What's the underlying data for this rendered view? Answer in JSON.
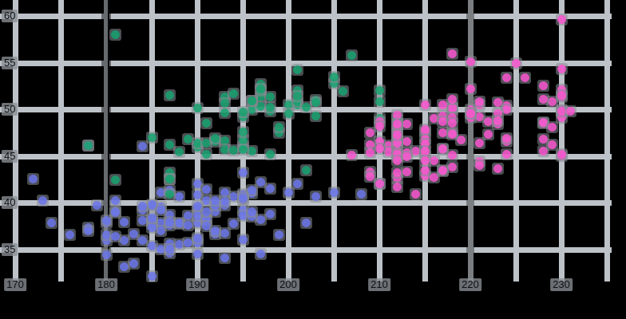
{
  "figure": {
    "background_color": "#000000",
    "grid_color": "#bcc2c7",
    "point_halo_color": "#878d93",
    "label_chip_color": "#8a9095",
    "label_text_color": "#0f1215"
  },
  "chart_data": {
    "type": "scatter",
    "title": "",
    "xlabel": "",
    "ylabel": "",
    "x_ticks": [
      170,
      180,
      190,
      200,
      210,
      220,
      230
    ],
    "y_ticks": [
      35,
      40,
      45,
      50,
      55,
      60
    ],
    "x_gridlines": [
      170,
      175,
      180,
      185,
      190,
      195,
      200,
      205,
      210,
      215,
      220,
      225,
      230,
      235
    ],
    "y_gridlines": [
      35,
      40,
      45,
      50,
      55,
      60
    ],
    "xlim": [
      168.3,
      237.1
    ],
    "ylim": [
      31.5,
      61.7
    ],
    "grid": "on, every 5 units both axes",
    "legend": "none",
    "reference_lines": [
      {
        "axis": "x",
        "value": 180,
        "style": "dark",
        "color": "#0e1116"
      },
      {
        "axis": "x",
        "value": 220,
        "style": "dimmed",
        "color": "#6b7176"
      }
    ],
    "series": [
      {
        "name": "blue",
        "color": "#6b76ea",
        "points": [
          [
            181,
            39.1
          ],
          [
            186,
            39.5
          ],
          [
            195,
            40.3
          ],
          [
            193,
            36.7
          ],
          [
            190,
            39.3
          ],
          [
            181,
            38.9
          ],
          [
            195,
            39.2
          ],
          [
            193,
            34.1
          ],
          [
            190,
            42.0
          ],
          [
            186,
            37.8
          ],
          [
            180,
            37.8
          ],
          [
            182,
            35.9
          ],
          [
            191,
            38.2
          ],
          [
            198,
            38.8
          ],
          [
            185,
            35.3
          ],
          [
            195,
            40.9
          ],
          [
            197,
            38.2
          ],
          [
            184,
            46.0
          ],
          [
            194,
            37.7
          ],
          [
            174,
            37.8
          ],
          [
            180,
            35.9
          ],
          [
            189,
            38.6
          ],
          [
            185,
            38.2
          ],
          [
            180,
            38.1
          ],
          [
            187,
            34.6
          ],
          [
            183,
            36.6
          ],
          [
            187,
            38.7
          ],
          [
            172,
            42.5
          ],
          [
            180,
            34.4
          ],
          [
            178,
            46.1
          ],
          [
            178,
            37.3
          ],
          [
            188,
            37.7
          ],
          [
            184,
            35.9
          ],
          [
            195,
            38.6
          ],
          [
            196,
            38.5
          ],
          [
            190,
            34.5
          ],
          [
            180,
            36.5
          ],
          [
            181,
            36.4
          ],
          [
            184,
            38.1
          ],
          [
            182,
            33.1
          ],
          [
            195,
            43.2
          ],
          [
            186,
            35.0
          ],
          [
            196,
            41.0
          ],
          [
            185,
            37.7
          ],
          [
            190,
            37.8
          ],
          [
            182,
            37.9
          ],
          [
            179,
            39.7
          ],
          [
            190,
            38.6
          ],
          [
            191,
            38.2
          ],
          [
            186,
            41.1
          ],
          [
            188,
            35.5
          ],
          [
            190,
            40.8
          ],
          [
            200,
            41.1
          ],
          [
            187,
            35.6
          ],
          [
            191,
            40.2
          ],
          [
            186,
            37.0
          ],
          [
            193,
            39.7
          ],
          [
            181,
            40.2
          ],
          [
            194,
            40.6
          ],
          [
            185,
            32.1
          ],
          [
            195,
            40.7
          ],
          [
            185,
            37.3
          ],
          [
            192,
            39.0
          ],
          [
            184,
            39.2
          ],
          [
            192,
            36.6
          ],
          [
            195,
            36.0
          ],
          [
            188,
            37.8
          ],
          [
            190,
            36.0
          ],
          [
            198,
            41.5
          ],
          [
            190,
            35.7
          ],
          [
            196,
            41.3
          ],
          [
            187,
            37.6
          ],
          [
            193,
            41.1
          ],
          [
            210,
            42.0
          ],
          [
            191,
            39.0
          ],
          [
            185,
            39.6
          ],
          [
            193,
            40.1
          ],
          [
            187,
            35.0
          ],
          [
            201,
            42.0
          ],
          [
            197,
            34.5
          ],
          [
            191,
            41.4
          ],
          [
            196,
            39.0
          ],
          [
            188,
            40.6
          ],
          [
            199,
            36.5
          ],
          [
            189,
            37.6
          ],
          [
            189,
            35.7
          ],
          [
            187,
            41.3
          ],
          [
            202,
            37.8
          ],
          [
            205,
            41.1
          ],
          [
            185,
            38.3
          ],
          [
            186,
            39.2
          ],
          [
            187,
            37.9
          ],
          [
            208,
            40.9
          ],
          [
            190,
            36.2
          ],
          [
            178,
            37.0
          ],
          [
            192,
            39.7
          ],
          [
            192,
            40.2
          ],
          [
            203,
            40.6
          ],
          [
            183,
            33.5
          ],
          [
            190,
            39.6
          ],
          [
            191,
            37.5
          ],
          [
            197,
            42.2
          ],
          [
            185,
            39.8
          ],
          [
            192,
            37.0
          ],
          [
            184,
            39.6
          ],
          [
            195,
            40.5
          ],
          [
            176,
            36.5
          ],
          [
            173,
            40.2
          ]
        ]
      },
      {
        "name": "green",
        "color": "#16a26f",
        "points": [
          [
            192,
            46.5
          ],
          [
            196,
            50.0
          ],
          [
            193,
            51.3
          ],
          [
            188,
            45.4
          ],
          [
            197,
            52.7
          ],
          [
            198,
            45.2
          ],
          [
            178,
            46.1
          ],
          [
            197,
            51.3
          ],
          [
            195,
            46.0
          ],
          [
            198,
            51.3
          ],
          [
            193,
            46.6
          ],
          [
            194,
            51.7
          ],
          [
            185,
            47.0
          ],
          [
            201,
            52.0
          ],
          [
            190,
            45.9
          ],
          [
            201,
            50.5
          ],
          [
            197,
            50.3
          ],
          [
            181,
            58.0
          ],
          [
            190,
            46.4
          ],
          [
            195,
            49.2
          ],
          [
            181,
            42.4
          ],
          [
            191,
            48.5
          ],
          [
            187,
            43.2
          ],
          [
            193,
            50.6
          ],
          [
            195,
            46.7
          ],
          [
            197,
            52.0
          ],
          [
            200,
            50.5
          ],
          [
            200,
            49.5
          ],
          [
            191,
            46.4
          ],
          [
            205,
            52.8
          ],
          [
            187,
            40.9
          ],
          [
            201,
            54.2
          ],
          [
            187,
            42.5
          ],
          [
            203,
            51.0
          ],
          [
            195,
            49.7
          ],
          [
            199,
            47.5
          ],
          [
            195,
            47.6
          ],
          [
            210,
            52.0
          ],
          [
            192,
            46.9
          ],
          [
            205,
            53.5
          ],
          [
            210,
            49.0
          ],
          [
            187,
            46.2
          ],
          [
            196,
            50.9
          ],
          [
            196,
            45.5
          ],
          [
            196,
            50.9
          ],
          [
            201,
            50.8
          ],
          [
            190,
            50.1
          ],
          [
            212,
            49.0
          ],
          [
            187,
            51.5
          ],
          [
            198,
            49.8
          ],
          [
            199,
            48.1
          ],
          [
            201,
            51.4
          ],
          [
            193,
            45.7
          ],
          [
            203,
            50.7
          ],
          [
            187,
            42.5
          ],
          [
            197,
            52.2
          ],
          [
            191,
            45.2
          ],
          [
            203,
            49.3
          ],
          [
            202,
            50.2
          ],
          [
            194,
            45.6
          ],
          [
            206,
            51.9
          ],
          [
            189,
            46.8
          ],
          [
            195,
            45.7
          ],
          [
            207,
            55.8
          ],
          [
            202,
            43.5
          ],
          [
            193,
            49.6
          ],
          [
            210,
            50.8
          ],
          [
            198,
            50.2
          ]
        ]
      },
      {
        "name": "pink",
        "color": "#f956cf",
        "points": [
          [
            211,
            46.1
          ],
          [
            230,
            50.0
          ],
          [
            210,
            48.7
          ],
          [
            218,
            50.0
          ],
          [
            215,
            47.6
          ],
          [
            210,
            46.5
          ],
          [
            211,
            45.4
          ],
          [
            219,
            46.7
          ],
          [
            209,
            43.3
          ],
          [
            215,
            46.8
          ],
          [
            214,
            40.9
          ],
          [
            216,
            49.0
          ],
          [
            214,
            45.5
          ],
          [
            213,
            48.4
          ],
          [
            210,
            45.8
          ],
          [
            217,
            49.3
          ],
          [
            210,
            42.0
          ],
          [
            221,
            49.2
          ],
          [
            209,
            46.2
          ],
          [
            222,
            48.7
          ],
          [
            218,
            50.2
          ],
          [
            215,
            45.1
          ],
          [
            213,
            46.5
          ],
          [
            215,
            46.3
          ],
          [
            215,
            42.9
          ],
          [
            216,
            44.5
          ],
          [
            215,
            47.8
          ],
          [
            210,
            48.2
          ],
          [
            220,
            50.0
          ],
          [
            222,
            47.3
          ],
          [
            209,
            42.8
          ],
          [
            207,
            45.1
          ],
          [
            230,
            59.6
          ],
          [
            220,
            49.1
          ],
          [
            223,
            48.4
          ],
          [
            212,
            42.6
          ],
          [
            221,
            44.4
          ],
          [
            221,
            44.0
          ],
          [
            217,
            48.7
          ],
          [
            216,
            42.7
          ],
          [
            230,
            49.6
          ],
          [
            209,
            45.3
          ],
          [
            220,
            49.6
          ],
          [
            215,
            50.5
          ],
          [
            223,
            43.6
          ],
          [
            212,
            45.5
          ],
          [
            221,
            50.5
          ],
          [
            212,
            44.9
          ],
          [
            224,
            45.2
          ],
          [
            212,
            46.6
          ],
          [
            228,
            48.5
          ],
          [
            218,
            45.1
          ],
          [
            218,
            50.1
          ],
          [
            212,
            46.5
          ],
          [
            230,
            45.0
          ],
          [
            218,
            43.8
          ],
          [
            228,
            45.5
          ],
          [
            212,
            43.2
          ],
          [
            224,
            50.4
          ],
          [
            213,
            45.3
          ],
          [
            229,
            46.2
          ],
          [
            217,
            45.7
          ],
          [
            230,
            54.3
          ],
          [
            217,
            45.8
          ],
          [
            230,
            49.8
          ],
          [
            220,
            49.5
          ],
          [
            215,
            43.5
          ],
          [
            223,
            50.7
          ],
          [
            212,
            47.7
          ],
          [
            221,
            46.4
          ],
          [
            212,
            48.2
          ],
          [
            224,
            46.5
          ],
          [
            212,
            46.4
          ],
          [
            228,
            48.6
          ],
          [
            218,
            47.5
          ],
          [
            218,
            51.1
          ],
          [
            212,
            45.2
          ],
          [
            230,
            45.2
          ],
          [
            218,
            49.1
          ],
          [
            228,
            52.5
          ],
          [
            212,
            47.4
          ],
          [
            224,
            50.0
          ],
          [
            213,
            44.9
          ],
          [
            229,
            50.8
          ],
          [
            217,
            43.4
          ],
          [
            230,
            51.3
          ],
          [
            217,
            47.5
          ],
          [
            230,
            52.1
          ],
          [
            209,
            47.5
          ],
          [
            220,
            52.2
          ],
          [
            215,
            45.5
          ],
          [
            223,
            49.5
          ],
          [
            212,
            44.5
          ],
          [
            221,
            50.8
          ],
          [
            212,
            49.4
          ],
          [
            224,
            46.9
          ],
          [
            212,
            48.4
          ],
          [
            228,
            51.1
          ],
          [
            218,
            48.5
          ],
          [
            218,
            55.9
          ],
          [
            212,
            47.2
          ],
          [
            230,
            49.1
          ],
          [
            218,
            47.3
          ],
          [
            228,
            46.8
          ],
          [
            212,
            41.7
          ],
          [
            224,
            53.4
          ],
          [
            213,
            43.3
          ],
          [
            229,
            48.1
          ],
          [
            217,
            50.5
          ],
          [
            230,
            49.8
          ],
          [
            217,
            43.5
          ],
          [
            230,
            51.5
          ],
          [
            220,
            55.1
          ],
          [
            215,
            44.5
          ],
          [
            223,
            48.8
          ],
          [
            226,
            53.4
          ],
          [
            231,
            49.8
          ],
          [
            225,
            54.9
          ]
        ]
      }
    ]
  }
}
